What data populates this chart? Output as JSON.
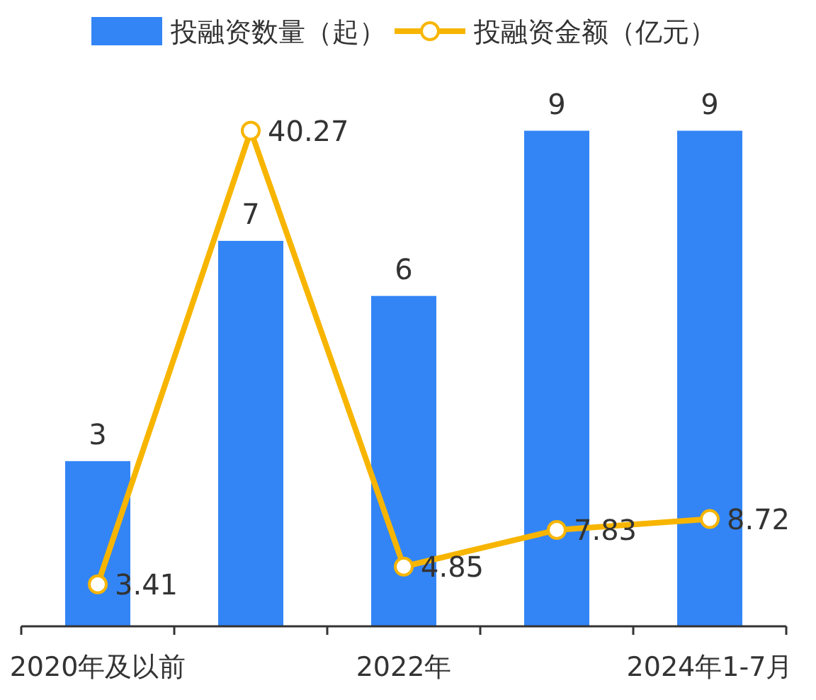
{
  "chart_data": {
    "type": "bar",
    "categories": [
      "2020年及以前",
      null,
      "2022年",
      null,
      "2024年1-7月"
    ],
    "series": [
      {
        "name": "投融资数量（起）",
        "color": "#3385f5",
        "values": [
          3,
          7,
          6,
          9,
          9
        ]
      },
      {
        "name": "投融资金额（亿元）",
        "type": "line",
        "axis": "y2",
        "color": "#f7b500",
        "values": [
          3.41,
          40.27,
          4.85,
          7.83,
          8.72
        ]
      }
    ],
    "data_labels": true,
    "legend": "top",
    "marker": "circle",
    "line_style": "solid",
    "tick_labels": "x"
  }
}
